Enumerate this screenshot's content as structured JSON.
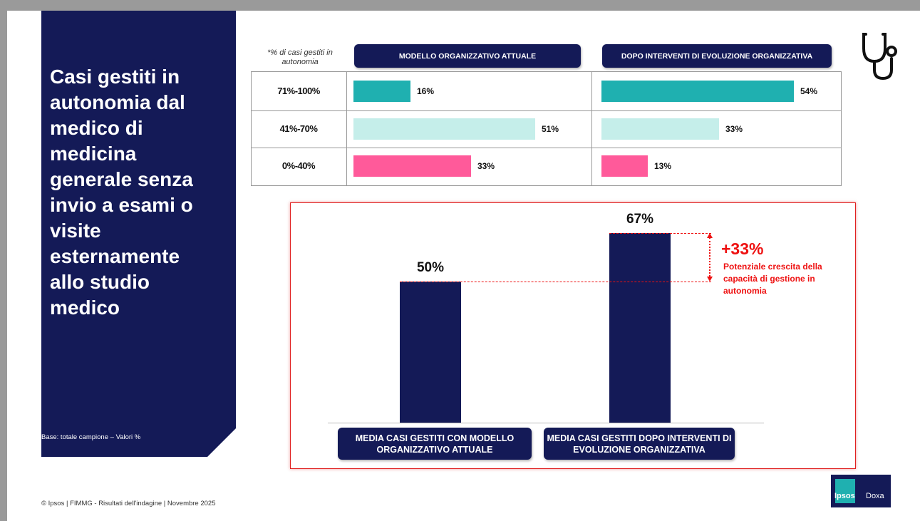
{
  "side": {
    "title": "Casi gestiti in autonomia dal medico di medicina generale senza invio a esami o visite esternamente allo studio medico",
    "base": "Base: totale campione – Valori %"
  },
  "footer": "© Ipsos | FIMMG - Risultati dell'indagine | Novembre 2025",
  "logo": [
    "Ipsos",
    "Doxa"
  ],
  "chart_data": [
    {
      "type": "hbar",
      "note": "*% di casi gestiti in autonomia",
      "categories": [
        "71%-100%",
        "41%-70%",
        "0%-40%"
      ],
      "colors": [
        "#1fb0b0",
        "#c5eeea",
        "#ff5a9a"
      ],
      "series": [
        {
          "name": "MODELLO ORGANIZZATIVO ATTUALE",
          "values": [
            16,
            51,
            33
          ],
          "value_labels": [
            "16%",
            "51%",
            "33%"
          ]
        },
        {
          "name": "DOPO INTERVENTI DI EVOLUZIONE ORGANIZZATIVA",
          "values": [
            54,
            33,
            13
          ],
          "value_labels": [
            "54%",
            "33%",
            "13%"
          ]
        }
      ]
    },
    {
      "type": "bar",
      "color": "#141a57",
      "categories": [
        "MEDIA CASI GESTITI CON MODELLO ORGANIZZATIVO ATTUALE",
        "MEDIA CASI GESTITI DOPO INTERVENTI DI EVOLUZIONE ORGANIZZATIVA"
      ],
      "values": [
        50,
        67
      ],
      "value_labels": [
        "50%",
        "67%"
      ],
      "annotation": {
        "value": 33,
        "label": "+33%",
        "text": "Potenziale crescita della capacità di gestione in autonomia"
      }
    }
  ]
}
